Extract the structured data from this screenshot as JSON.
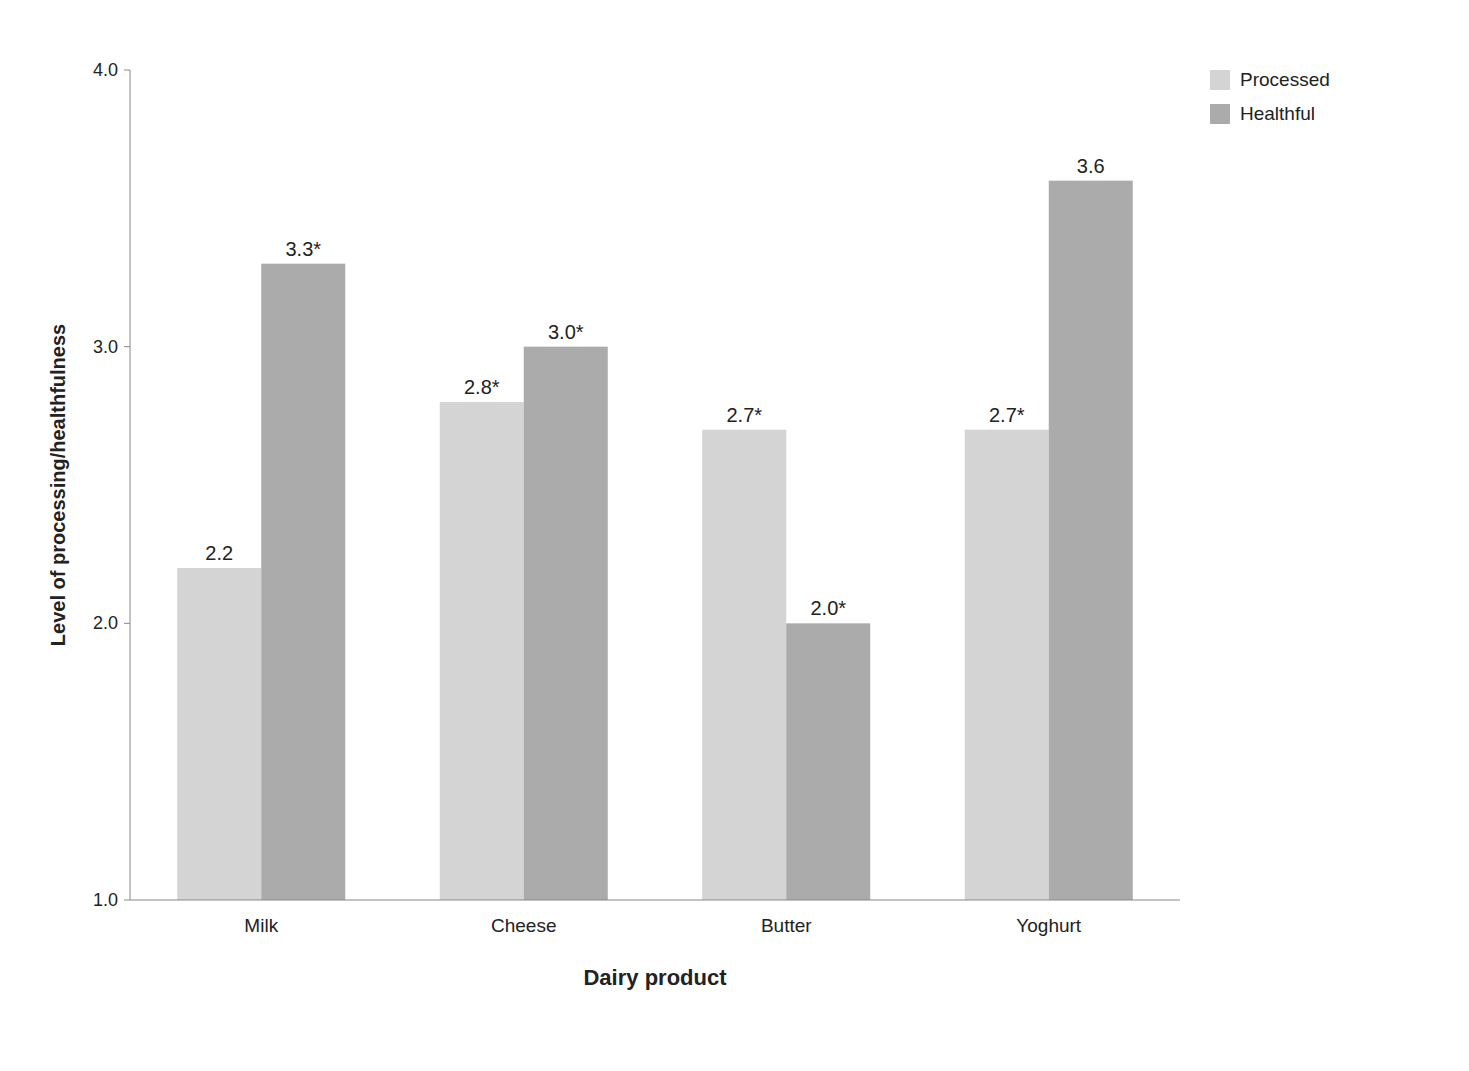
{
  "chart_data": {
    "type": "bar",
    "categories": [
      "Milk",
      "Cheese",
      "Butter",
      "Yoghurt"
    ],
    "series": [
      {
        "name": "Processed",
        "color": "#d4d4d4",
        "values": [
          2.2,
          2.8,
          2.7,
          2.7
        ],
        "value_labels": [
          "2.2",
          "2.8*",
          "2.7*",
          "2.7*"
        ]
      },
      {
        "name": "Healthful",
        "color": "#ababab",
        "values": [
          3.3,
          3.0,
          2.0,
          3.6
        ],
        "value_labels": [
          "3.3*",
          "3.0*",
          "2.0*",
          "3.6"
        ]
      }
    ],
    "xlabel": "Dairy product",
    "ylabel": "Level of processing/healthfulness",
    "ylim": [
      1.0,
      4.0
    ],
    "yticks": [
      {
        "value": 1.0,
        "label": "1.0"
      },
      {
        "value": 2.0,
        "label": "2.0"
      },
      {
        "value": 3.0,
        "label": "3.0"
      },
      {
        "value": 4.0,
        "label": "4.0"
      }
    ],
    "grid": false,
    "legend": "top-right",
    "data_labels": true
  }
}
